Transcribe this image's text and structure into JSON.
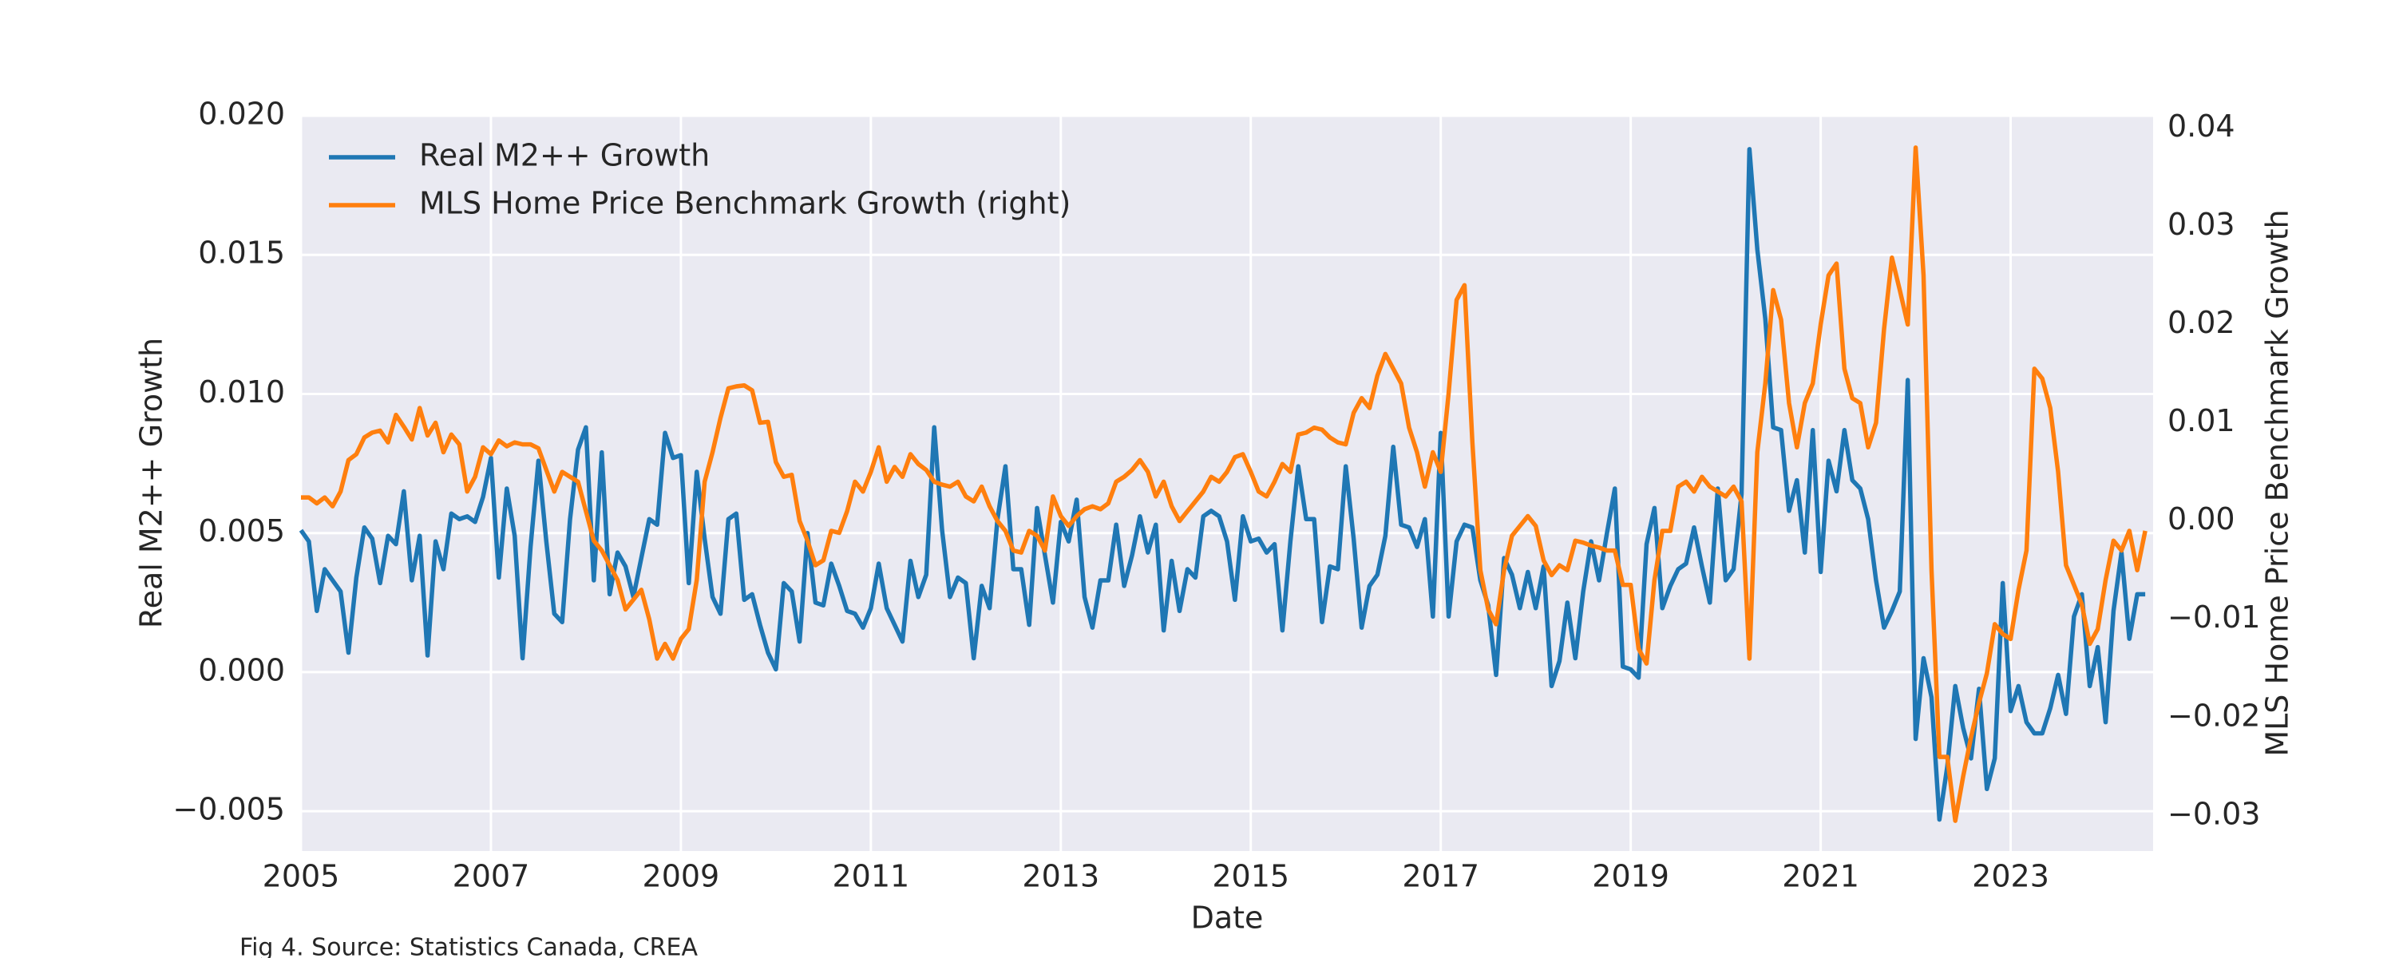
{
  "chart_data": {
    "type": "line",
    "x_label": "Date",
    "y_label": "Real M2++ Growth",
    "y2_label": "MLS Home Price Benchmark Growth",
    "caption": "Fig 4. Source: Statistics Canada, CREA",
    "legend": "upper left",
    "grid": true,
    "background": "#eaeaf2",
    "xlim": [
      2005,
      2024.5
    ],
    "xticks": [
      2005,
      2007,
      2009,
      2011,
      2013,
      2015,
      2017,
      2019,
      2021,
      2023
    ],
    "ylim": [
      -0.00643,
      0.02
    ],
    "yticks": [
      {
        "value": -0.005,
        "label": "−0.005"
      },
      {
        "value": 0,
        "label": "0.000"
      },
      0.005,
      {
        "value": 0.01,
        "label": "0.010"
      },
      0.015,
      {
        "value": 0.02,
        "label": "0.020"
      }
    ],
    "y2lim": [
      -0.03358,
      0.04124
    ],
    "y2ticks": [
      {
        "value": -0.03,
        "label": "−0.03"
      },
      {
        "value": -0.02,
        "label": "−0.02"
      },
      {
        "value": -0.01,
        "label": "−0.01"
      },
      {
        "value": 0,
        "label": "0.00"
      },
      0.01,
      0.02,
      0.03,
      0.04
    ],
    "x": [
      2005.0,
      2005.083,
      2005.167,
      2005.25,
      2005.333,
      2005.417,
      2005.5,
      2005.583,
      2005.667,
      2005.75,
      2005.833,
      2005.917,
      2006.0,
      2006.083,
      2006.167,
      2006.25,
      2006.333,
      2006.417,
      2006.5,
      2006.583,
      2006.667,
      2006.75,
      2006.833,
      2006.917,
      2007.0,
      2007.083,
      2007.167,
      2007.25,
      2007.333,
      2007.417,
      2007.5,
      2007.583,
      2007.667,
      2007.75,
      2007.833,
      2007.917,
      2008.0,
      2008.083,
      2008.167,
      2008.25,
      2008.333,
      2008.417,
      2008.5,
      2008.583,
      2008.667,
      2008.75,
      2008.833,
      2008.917,
      2009.0,
      2009.083,
      2009.167,
      2009.25,
      2009.333,
      2009.417,
      2009.5,
      2009.583,
      2009.667,
      2009.75,
      2009.833,
      2009.917,
      2010.0,
      2010.083,
      2010.167,
      2010.25,
      2010.333,
      2010.417,
      2010.5,
      2010.583,
      2010.667,
      2010.75,
      2010.833,
      2010.917,
      2011.0,
      2011.083,
      2011.167,
      2011.25,
      2011.333,
      2011.417,
      2011.5,
      2011.583,
      2011.667,
      2011.75,
      2011.833,
      2011.917,
      2012.0,
      2012.083,
      2012.167,
      2012.25,
      2012.333,
      2012.417,
      2012.5,
      2012.583,
      2012.667,
      2012.75,
      2012.833,
      2012.917,
      2013.0,
      2013.083,
      2013.167,
      2013.25,
      2013.333,
      2013.417,
      2013.5,
      2013.583,
      2013.667,
      2013.75,
      2013.833,
      2013.917,
      2014.0,
      2014.083,
      2014.167,
      2014.25,
      2014.333,
      2014.417,
      2014.5,
      2014.583,
      2014.667,
      2014.75,
      2014.833,
      2014.917,
      2015.0,
      2015.083,
      2015.167,
      2015.25,
      2015.333,
      2015.417,
      2015.5,
      2015.583,
      2015.667,
      2015.75,
      2015.833,
      2015.917,
      2016.0,
      2016.083,
      2016.167,
      2016.25,
      2016.333,
      2016.417,
      2016.5,
      2016.583,
      2016.667,
      2016.75,
      2016.833,
      2016.917,
      2017.0,
      2017.083,
      2017.167,
      2017.25,
      2017.333,
      2017.417,
      2017.5,
      2017.583,
      2017.667,
      2017.75,
      2017.833,
      2017.917,
      2018.0,
      2018.083,
      2018.167,
      2018.25,
      2018.333,
      2018.417,
      2018.5,
      2018.583,
      2018.667,
      2018.75,
      2018.833,
      2018.917,
      2019.0,
      2019.083,
      2019.167,
      2019.25,
      2019.333,
      2019.417,
      2019.5,
      2019.583,
      2019.667,
      2019.75,
      2019.833,
      2019.917,
      2020.0,
      2020.083,
      2020.167,
      2020.25,
      2020.333,
      2020.417,
      2020.5,
      2020.583,
      2020.667,
      2020.75,
      2020.833,
      2020.917,
      2021.0,
      2021.083,
      2021.167,
      2021.25,
      2021.333,
      2021.417,
      2021.5,
      2021.583,
      2021.667,
      2021.75,
      2021.833,
      2021.917,
      2022.0,
      2022.083,
      2022.167,
      2022.25,
      2022.333,
      2022.417,
      2022.5,
      2022.583,
      2022.667,
      2022.75,
      2022.833,
      2022.917,
      2023.0,
      2023.083,
      2023.167,
      2023.25,
      2023.333,
      2023.417,
      2023.5,
      2023.583,
      2023.667,
      2023.75,
      2023.833,
      2023.917,
      2024.0,
      2024.083,
      2024.167,
      2024.25,
      2024.333,
      2024.417
    ],
    "series": [
      {
        "name": "Real M2++ Growth",
        "color": "#1f77b4",
        "axis": "y",
        "values": [
          0.0051,
          0.0047,
          0.0022,
          0.0037,
          0.0033,
          0.0029,
          0.0007,
          0.0034,
          0.0052,
          0.0048,
          0.0032,
          0.0049,
          0.0046,
          0.0065,
          0.0033,
          0.0049,
          0.0006,
          0.0047,
          0.0037,
          0.0057,
          0.0055,
          0.0056,
          0.0054,
          0.0063,
          0.0077,
          0.0034,
          0.0066,
          0.0049,
          0.0005,
          0.0045,
          0.0076,
          0.0047,
          0.0021,
          0.0018,
          0.0055,
          0.008,
          0.0088,
          0.0033,
          0.0079,
          0.0028,
          0.0043,
          0.0038,
          0.0027,
          0.0041,
          0.0055,
          0.0053,
          0.0086,
          0.0077,
          0.0078,
          0.0032,
          0.0072,
          0.0048,
          0.0027,
          0.0021,
          0.0055,
          0.0057,
          0.0026,
          0.0028,
          0.0017,
          0.0007,
          0.0001,
          0.0032,
          0.0029,
          0.0011,
          0.005,
          0.0025,
          0.0024,
          0.0039,
          0.0031,
          0.0022,
          0.0021,
          0.0016,
          0.0023,
          0.0039,
          0.0023,
          0.0017,
          0.0011,
          0.004,
          0.0027,
          0.0035,
          0.0088,
          0.0051,
          0.0027,
          0.0034,
          0.0032,
          0.0005,
          0.0031,
          0.0023,
          0.0055,
          0.0074,
          0.0037,
          0.0037,
          0.0017,
          0.0059,
          0.0042,
          0.0025,
          0.0054,
          0.0047,
          0.0062,
          0.0027,
          0.0016,
          0.0033,
          0.0033,
          0.0053,
          0.0031,
          0.0042,
          0.0056,
          0.0043,
          0.0053,
          0.0015,
          0.004,
          0.0022,
          0.0037,
          0.0034,
          0.0056,
          0.0058,
          0.0056,
          0.0047,
          0.0026,
          0.0056,
          0.0047,
          0.0048,
          0.0043,
          0.0046,
          0.0015,
          0.0047,
          0.0074,
          0.0055,
          0.0055,
          0.0018,
          0.0038,
          0.0037,
          0.0074,
          0.0048,
          0.0016,
          0.0031,
          0.0035,
          0.0049,
          0.0081,
          0.0053,
          0.0052,
          0.0045,
          0.0055,
          0.002,
          0.0086,
          0.002,
          0.0047,
          0.0053,
          0.0052,
          0.0033,
          0.0024,
          -0.0001,
          0.0041,
          0.0035,
          0.0023,
          0.0036,
          0.0023,
          0.0038,
          -0.0005,
          0.0004,
          0.0025,
          0.0005,
          0.0029,
          0.0047,
          0.0033,
          0.005,
          0.0066,
          0.0002,
          0.0001,
          -0.0002,
          0.0046,
          0.0059,
          0.0023,
          0.0031,
          0.0037,
          0.0039,
          0.0052,
          0.0038,
          0.0025,
          0.0066,
          0.0033,
          0.0037,
          0.0064,
          0.0188,
          0.0152,
          0.0127,
          0.0088,
          0.0087,
          0.0058,
          0.0069,
          0.0043,
          0.0087,
          0.0036,
          0.0076,
          0.0065,
          0.0087,
          0.0069,
          0.0066,
          0.0055,
          0.0033,
          0.0016,
          0.0022,
          0.0029,
          0.0105,
          -0.0024,
          0.0005,
          -0.0009,
          -0.0053,
          -0.0034,
          -0.0005,
          -0.002,
          -0.0031,
          -0.0006,
          -0.0042,
          -0.0031,
          0.0032,
          -0.0014,
          -0.0005,
          -0.0018,
          -0.0022,
          -0.0022,
          -0.0013,
          -0.0001,
          -0.0015,
          0.002,
          0.0028,
          -0.0005,
          0.0009,
          -0.0018,
          0.0022,
          0.0043,
          0.0012,
          0.0028,
          0.0028
        ]
      },
      {
        "name": "MLS Home Price Benchmark Growth (right)",
        "color": "#ff7f0e",
        "axis": "y2",
        "values": [
          0.0024,
          0.0024,
          0.0018,
          0.0024,
          0.0015,
          0.003,
          0.0062,
          0.0068,
          0.0085,
          0.009,
          0.0092,
          0.008,
          0.0108,
          0.0096,
          0.0083,
          0.0115,
          0.0087,
          0.01,
          0.007,
          0.0088,
          0.0078,
          0.003,
          0.0045,
          0.0075,
          0.0068,
          0.0082,
          0.0076,
          0.008,
          0.0078,
          0.0078,
          0.0074,
          0.0052,
          0.003,
          0.005,
          0.0045,
          0.004,
          0.001,
          -0.002,
          -0.003,
          -0.0045,
          -0.006,
          -0.009,
          -0.008,
          -0.007,
          -0.01,
          -0.014,
          -0.0125,
          -0.014,
          -0.012,
          -0.011,
          -0.006,
          0.004,
          0.007,
          0.0105,
          0.0135,
          0.0137,
          0.0138,
          0.0133,
          0.01,
          0.0101,
          0.006,
          0.0045,
          0.0047,
          0.0,
          -0.002,
          -0.0045,
          -0.004,
          -0.001,
          -0.0012,
          0.001,
          0.004,
          0.003,
          0.005,
          0.0075,
          0.004,
          0.0055,
          0.0045,
          0.0068,
          0.0058,
          0.0052,
          0.004,
          0.0037,
          0.0035,
          0.004,
          0.0025,
          0.002,
          0.0035,
          0.0015,
          0.0,
          -0.001,
          -0.003,
          -0.0032,
          -0.001,
          -0.0015,
          -0.003,
          0.0025,
          0.0005,
          -0.0005,
          0.0005,
          0.0012,
          0.0015,
          0.0012,
          0.0018,
          0.004,
          0.0045,
          0.0052,
          0.0062,
          0.005,
          0.0025,
          0.004,
          0.0015,
          0.0,
          0.001,
          0.002,
          0.003,
          0.0045,
          0.004,
          0.005,
          0.0065,
          0.0068,
          0.005,
          0.003,
          0.0025,
          0.004,
          0.0058,
          0.005,
          0.0088,
          0.009,
          0.0095,
          0.0093,
          0.0085,
          0.008,
          0.0078,
          0.011,
          0.0125,
          0.0115,
          0.0148,
          0.017,
          0.0155,
          0.014,
          0.0095,
          0.007,
          0.0035,
          0.007,
          0.005,
          0.013,
          0.0225,
          0.024,
          0.008,
          -0.005,
          -0.009,
          -0.0105,
          -0.005,
          -0.0015,
          -0.0005,
          0.0005,
          -0.0005,
          -0.004,
          -0.0055,
          -0.0045,
          -0.005,
          -0.002,
          -0.0022,
          -0.0025,
          -0.0027,
          -0.003,
          -0.003,
          -0.0065,
          -0.0065,
          -0.013,
          -0.0145,
          -0.006,
          -0.001,
          -0.001,
          0.0035,
          0.004,
          0.003,
          0.0045,
          0.0035,
          0.003,
          0.0025,
          0.0035,
          0.002,
          -0.014,
          0.007,
          0.014,
          0.0235,
          0.0205,
          0.012,
          0.0075,
          0.012,
          0.014,
          0.02,
          0.025,
          0.0262,
          0.0155,
          0.0125,
          0.012,
          0.0075,
          0.01,
          0.0195,
          0.0268,
          0.0235,
          0.02,
          0.038,
          0.025,
          -0.005,
          -0.024,
          -0.024,
          -0.0305,
          -0.026,
          -0.022,
          -0.0185,
          -0.0155,
          -0.0105,
          -0.0115,
          -0.012,
          -0.007,
          -0.003,
          0.0155,
          0.0145,
          0.0115,
          0.005,
          -0.0045,
          -0.0065,
          -0.0085,
          -0.0125,
          -0.011,
          -0.006,
          -0.002,
          -0.003,
          -0.001,
          -0.005,
          -0.001
        ]
      }
    ]
  }
}
